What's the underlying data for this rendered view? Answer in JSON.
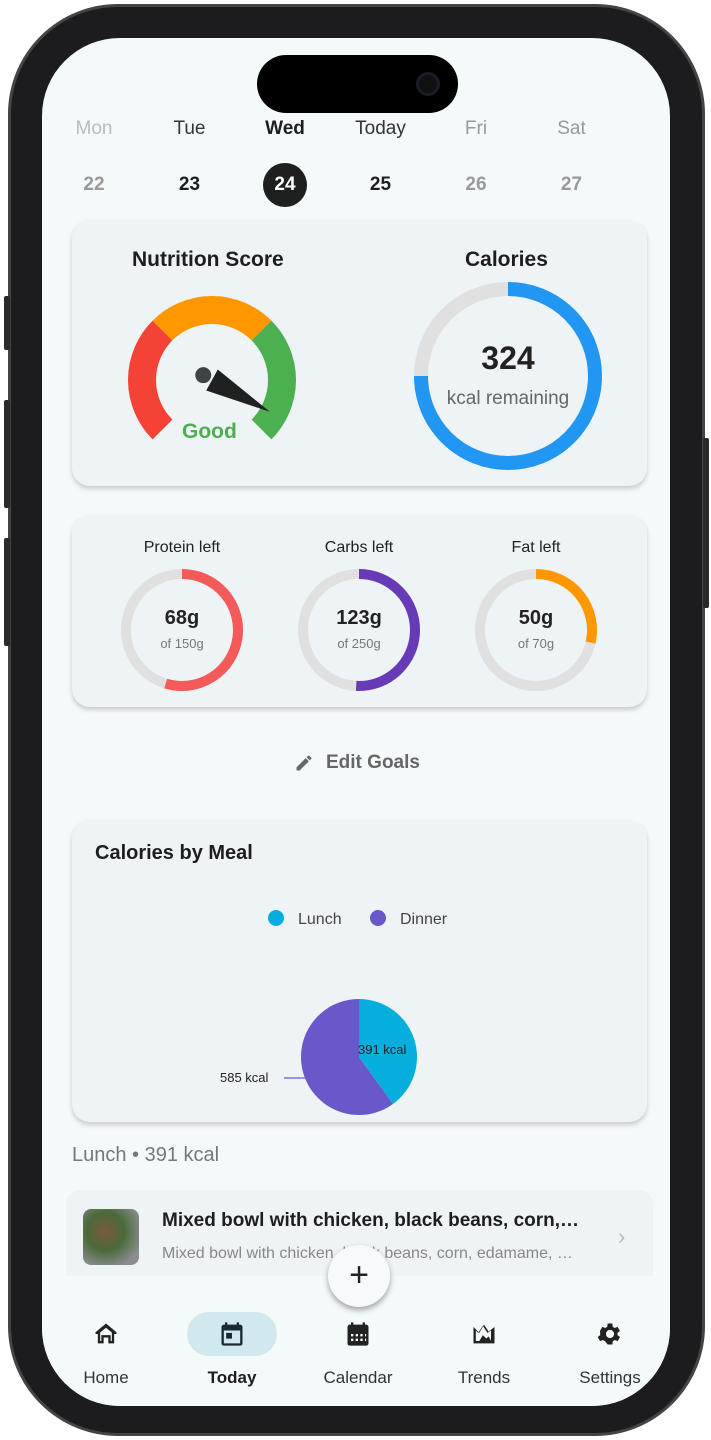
{
  "week": [
    {
      "name": "Mon",
      "num": "22",
      "state": "faded"
    },
    {
      "name": "Tue",
      "num": "23",
      "state": "normal"
    },
    {
      "name": "Wed",
      "num": "24",
      "state": "selected"
    },
    {
      "name": "Today",
      "num": "25",
      "state": "normal"
    },
    {
      "name": "Fri",
      "num": "26",
      "state": "future"
    },
    {
      "name": "Sat",
      "num": "27",
      "state": "future"
    }
  ],
  "score": {
    "title": "Nutrition Score",
    "label": "Good",
    "needle_fraction": 0.94,
    "colors": {
      "poor": "#f44336",
      "fair": "#ff9800",
      "good": "#4caf50"
    }
  },
  "calories": {
    "title": "Calories",
    "value": "324",
    "unit": "kcal remaining",
    "fill_fraction": 0.75,
    "color": "#2196f3"
  },
  "macros": [
    {
      "label": "Protein left",
      "value": "68g",
      "of": "of 150g",
      "fill_fraction": 0.547,
      "color": "#f55a5a"
    },
    {
      "label": "Carbs left",
      "value": "123g",
      "of": "of 250g",
      "fill_fraction": 0.508,
      "color": "#673ab7"
    },
    {
      "label": "Fat left",
      "value": "50g",
      "of": "of 70g",
      "fill_fraction": 0.286,
      "color": "#ff9800"
    }
  ],
  "edit_goals": "Edit Goals",
  "meal_chart": {
    "title": "Calories by Meal",
    "chart_data": {
      "type": "pie",
      "categories": [
        "Lunch",
        "Dinner"
      ],
      "values": [
        391,
        585
      ],
      "labels": [
        "391 kcal",
        "585 kcal"
      ],
      "colors": [
        "#06aedd",
        "#6a57c9"
      ],
      "legend": "top"
    }
  },
  "section": "Lunch • 391 kcal",
  "meal_item": {
    "title": "Mixed bowl with chicken, black beans, corn,…",
    "subtitle": "Mixed bowl with chicken, black beans, corn, edamame, …"
  },
  "nav": [
    {
      "label": "Home",
      "icon": "home-icon"
    },
    {
      "label": "Today",
      "icon": "today-icon"
    },
    {
      "label": "Calendar",
      "icon": "calendar-icon"
    },
    {
      "label": "Trends",
      "icon": "trends-icon"
    },
    {
      "label": "Settings",
      "icon": "gear-icon"
    }
  ]
}
